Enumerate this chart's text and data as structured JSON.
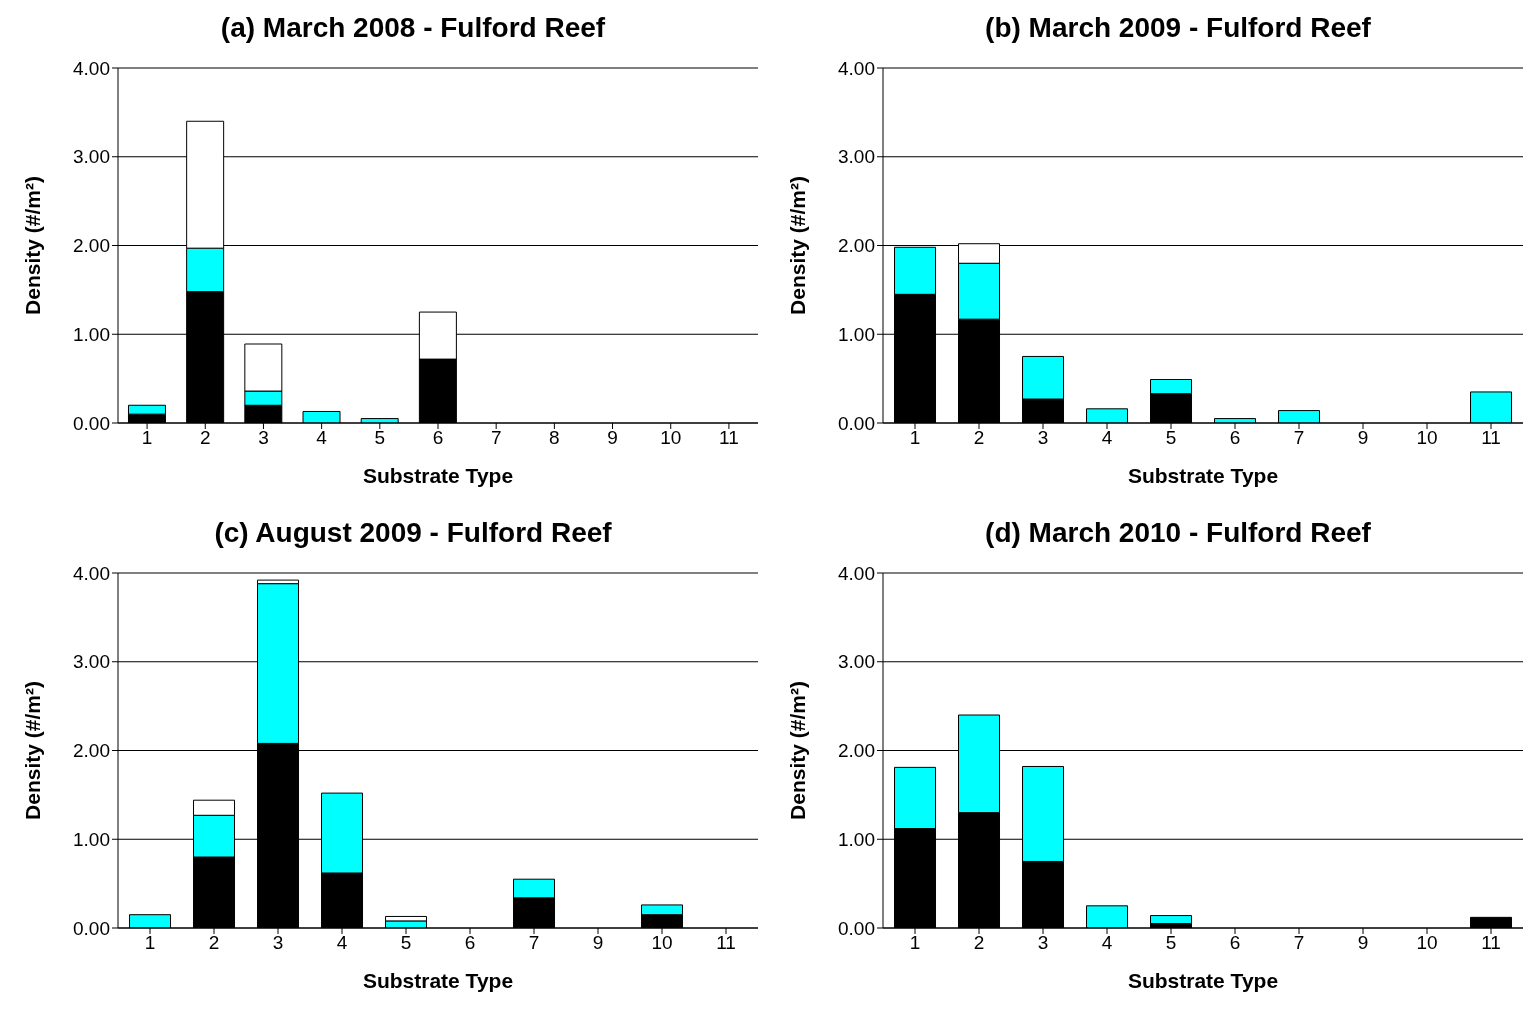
{
  "chart_data": [
    {
      "type": "bar",
      "title": "(a) March 2008 - Fulford Reef",
      "xlabel": "Substrate Type",
      "ylabel": "Density (#/m²)",
      "stacked": true,
      "grid": "y",
      "legend": false,
      "categories": [
        "1",
        "2",
        "3",
        "4",
        "5",
        "6",
        "7",
        "8",
        "9",
        "10",
        "11"
      ],
      "ylim": [
        0,
        4
      ],
      "yticks": [
        {
          "value": 0,
          "label": "0.00"
        },
        {
          "value": 1,
          "label": "1.00"
        },
        {
          "value": 2,
          "label": "2.00"
        },
        {
          "value": 3,
          "label": "3.00"
        },
        {
          "value": 4,
          "label": "4.00"
        }
      ],
      "series": [
        {
          "color": "#000000",
          "values": [
            0.1,
            1.48,
            0.2,
            0,
            0,
            0.72,
            0,
            0,
            0,
            0,
            0
          ]
        },
        {
          "color": "#00ffff",
          "values": [
            0.1,
            0.49,
            0.16,
            0.13,
            0.05,
            0,
            0,
            0,
            0,
            0,
            0
          ]
        },
        {
          "color": "#ffffff",
          "values": [
            0,
            1.43,
            0.53,
            0,
            0,
            0.53,
            0,
            0,
            0,
            0,
            0
          ]
        }
      ]
    },
    {
      "type": "bar",
      "title": "(b) March 2009 - Fulford Reef",
      "xlabel": "Substrate Type",
      "ylabel": "Density (#/m²)",
      "stacked": true,
      "grid": "y",
      "legend": false,
      "categories": [
        "1",
        "2",
        "3",
        "4",
        "5",
        "6",
        "7",
        "9",
        "10",
        "11"
      ],
      "ylim": [
        0,
        4
      ],
      "yticks": [
        {
          "value": 0,
          "label": "0.00"
        },
        {
          "value": 1,
          "label": "1.00"
        },
        {
          "value": 2,
          "label": "2.00"
        },
        {
          "value": 3,
          "label": "3.00"
        },
        {
          "value": 4,
          "label": "4.00"
        }
      ],
      "series": [
        {
          "color": "#000000",
          "values": [
            1.45,
            1.17,
            0.27,
            0,
            0.33,
            0,
            0,
            0,
            0,
            0
          ]
        },
        {
          "color": "#00ffff",
          "values": [
            0.53,
            0.63,
            0.48,
            0.16,
            0.16,
            0.05,
            0.14,
            0,
            0,
            0.35
          ]
        },
        {
          "color": "#ffffff",
          "values": [
            0,
            0.22,
            0,
            0,
            0,
            0,
            0,
            0,
            0,
            0
          ]
        }
      ]
    },
    {
      "type": "bar",
      "title": "(c) August 2009 - Fulford Reef",
      "xlabel": "Substrate Type",
      "ylabel": "Density (#/m²)",
      "stacked": true,
      "grid": "y",
      "legend": false,
      "categories": [
        "1",
        "2",
        "3",
        "4",
        "5",
        "6",
        "7",
        "9",
        "10",
        "11"
      ],
      "ylim": [
        0,
        4
      ],
      "yticks": [
        {
          "value": 0,
          "label": "0.00"
        },
        {
          "value": 1,
          "label": "1.00"
        },
        {
          "value": 2,
          "label": "2.00"
        },
        {
          "value": 3,
          "label": "3.00"
        },
        {
          "value": 4,
          "label": "4.00"
        }
      ],
      "series": [
        {
          "color": "#000000",
          "values": [
            0,
            0.8,
            2.08,
            0.62,
            0,
            0,
            0.34,
            0,
            0.15,
            0
          ]
        },
        {
          "color": "#00ffff",
          "values": [
            0.15,
            0.47,
            1.8,
            0.9,
            0.08,
            0,
            0.21,
            0,
            0.11,
            0
          ]
        },
        {
          "color": "#ffffff",
          "values": [
            0,
            0.17,
            0.04,
            0,
            0.05,
            0,
            0,
            0,
            0,
            0
          ]
        }
      ]
    },
    {
      "type": "bar",
      "title": "(d) March 2010 - Fulford Reef",
      "xlabel": "Substrate Type",
      "ylabel": "Density (#/m²)",
      "stacked": true,
      "grid": "y",
      "legend": false,
      "categories": [
        "1",
        "2",
        "3",
        "4",
        "5",
        "6",
        "7",
        "9",
        "10",
        "11"
      ],
      "ylim": [
        0,
        4
      ],
      "yticks": [
        {
          "value": 0,
          "label": "0.00"
        },
        {
          "value": 1,
          "label": "1.00"
        },
        {
          "value": 2,
          "label": "2.00"
        },
        {
          "value": 3,
          "label": "3.00"
        },
        {
          "value": 4,
          "label": "4.00"
        }
      ],
      "series": [
        {
          "color": "#000000",
          "values": [
            1.12,
            1.3,
            0.75,
            0,
            0.05,
            0,
            0,
            0,
            0,
            0.12
          ]
        },
        {
          "color": "#00ffff",
          "values": [
            0.69,
            1.1,
            1.07,
            0.25,
            0.09,
            0,
            0,
            0,
            0,
            0
          ]
        },
        {
          "color": "#ffffff",
          "values": [
            0,
            0,
            0,
            0,
            0,
            0,
            0,
            0,
            0,
            0
          ]
        }
      ]
    }
  ]
}
